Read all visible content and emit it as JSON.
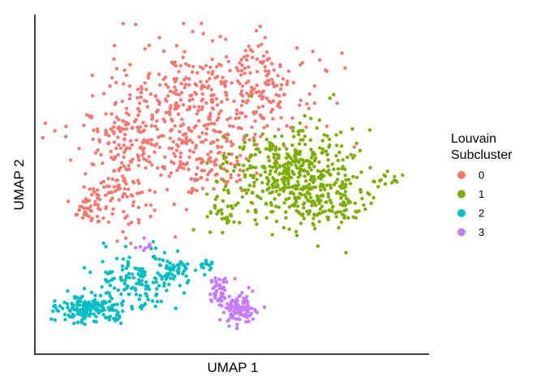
{
  "chart_data": {
    "type": "scatter",
    "title": "",
    "xlabel": "UMAP 1",
    "ylabel": "UMAP 2",
    "xlim": [
      0,
      100
    ],
    "ylim": [
      0,
      100
    ],
    "x_ticks_shown": false,
    "y_ticks_shown": false,
    "grid": false,
    "legend_title": [
      "Louvain",
      "Subcluster"
    ],
    "legend_position": "right",
    "series": [
      {
        "name": "0",
        "color": "#F8766D",
        "clusters": [
          {
            "cx": 43,
            "cy": 74,
            "rx": 26,
            "ry": 17,
            "n": 450
          },
          {
            "cx": 23,
            "cy": 55,
            "rx": 9,
            "ry": 20,
            "n": 170
          },
          {
            "cx": 14,
            "cy": 43,
            "rx": 5,
            "ry": 6,
            "n": 45
          },
          {
            "cx": 42,
            "cy": 56,
            "rx": 11,
            "ry": 9,
            "n": 90
          },
          {
            "cx": 58,
            "cy": 85,
            "rx": 7,
            "ry": 8,
            "n": 45
          }
        ]
      },
      {
        "name": "1",
        "color": "#7CAE00",
        "clusters": [
          {
            "cx": 66,
            "cy": 53,
            "rx": 15,
            "ry": 13,
            "n": 420
          },
          {
            "cx": 75,
            "cy": 45,
            "rx": 11,
            "ry": 8,
            "n": 110
          },
          {
            "cx": 91,
            "cy": 51,
            "rx": 3,
            "ry": 2,
            "n": 14
          },
          {
            "cx": 47,
            "cy": 40,
            "rx": 4,
            "ry": 6,
            "n": 28
          }
        ]
      },
      {
        "name": "2",
        "color": "#00BFC4",
        "clusters": [
          {
            "cx": 13,
            "cy": 12,
            "rx": 8,
            "ry": 4,
            "n": 150
          },
          {
            "cx": 25,
            "cy": 20,
            "rx": 9,
            "ry": 8,
            "n": 140
          },
          {
            "cx": 36,
            "cy": 24,
            "rx": 5,
            "ry": 4,
            "n": 50
          },
          {
            "cx": 44,
            "cy": 25,
            "rx": 2,
            "ry": 4,
            "n": 14
          }
        ]
      },
      {
        "name": "3",
        "color": "#C77CFF",
        "clusters": [
          {
            "cx": 52,
            "cy": 12,
            "rx": 5,
            "ry": 4,
            "n": 110
          },
          {
            "cx": 48,
            "cy": 18,
            "rx": 4,
            "ry": 5,
            "n": 40
          },
          {
            "cx": 27,
            "cy": 31,
            "rx": 2,
            "ry": 2,
            "n": 8
          }
        ]
      }
    ]
  }
}
